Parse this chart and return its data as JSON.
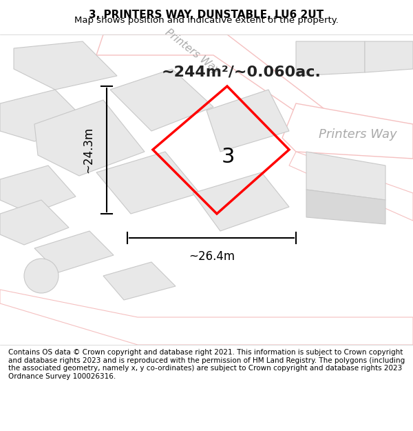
{
  "title": "3, PRINTERS WAY, DUNSTABLE, LU6 2UT",
  "subtitle": "Map shows position and indicative extent of the property.",
  "footer": "Contains OS data © Crown copyright and database right 2021. This information is subject to Crown copyright and database rights 2023 and is reproduced with the permission of HM Land Registry. The polygons (including the associated geometry, namely x, y co-ordinates) are subject to Crown copyright and database rights 2023 Ordnance Survey 100026316.",
  "area_text": "~244m²/~0.060ac.",
  "width_text": "~26.4m",
  "height_text": "~24.3m",
  "plot_number": "3",
  "bg_color": "#f5f5f5",
  "map_bg": "#f0f0f0",
  "road_color": "#ffffff",
  "building_color": "#e0e0e0",
  "building_edge": "#c0c0c0",
  "red_outline": "#ff0000",
  "road_label_color": "#aaaaaa",
  "annotation_color": "#222222",
  "title_fontsize": 11,
  "subtitle_fontsize": 9.5,
  "footer_fontsize": 7.5,
  "annotation_fontsize": 16,
  "plot_label_fontsize": 22,
  "road_label_fontsize": 11,
  "printers_way_label_fontsize": 13
}
